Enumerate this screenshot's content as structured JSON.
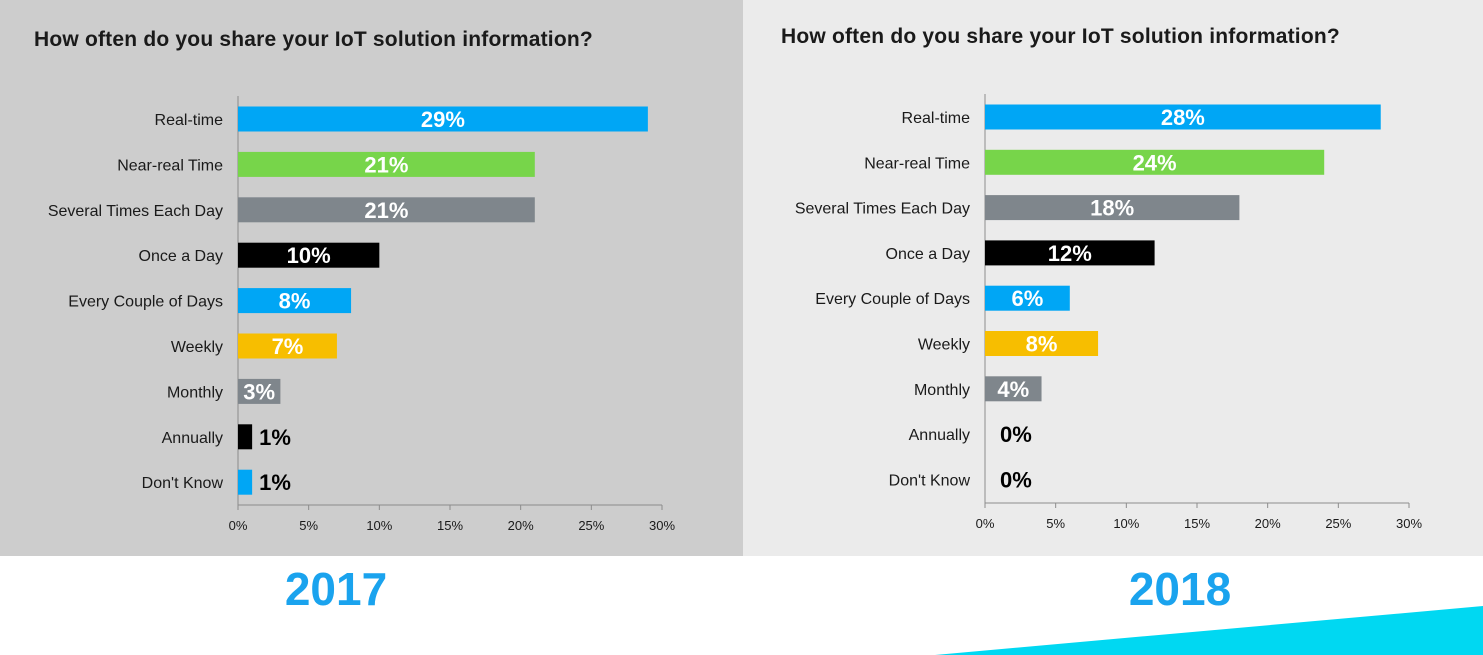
{
  "colors": {
    "blue": "#00a6f5",
    "green": "#77d54a",
    "gray": "#7f868c",
    "black": "#000000",
    "yellow": "#f7be00",
    "year_text": "#1aa3ee",
    "accent_stripe": "#00d8f2"
  },
  "chart_data": [
    {
      "type": "bar",
      "orientation": "horizontal",
      "title": "How often do you share your IoT solution information?",
      "categories": [
        "Real-time",
        "Near-real Time",
        "Several Times Each Day",
        "Once a Day",
        "Every Couple of Days",
        "Weekly",
        "Monthly",
        "Annually",
        "Don't Know"
      ],
      "values": [
        29,
        21,
        21,
        10,
        8,
        7,
        3,
        1,
        1
      ],
      "data_labels": [
        "29%",
        "21%",
        "21%",
        "10%",
        "8%",
        "7%",
        "3%",
        "1%",
        "1%"
      ],
      "bar_colors": [
        "blue",
        "green",
        "gray",
        "black",
        "blue",
        "yellow",
        "gray",
        "black",
        "blue"
      ],
      "xlim": [
        0,
        30
      ],
      "xticks": [
        "0%",
        "5%",
        "10%",
        "15%",
        "20%",
        "25%",
        "30%"
      ],
      "xlabel": "",
      "ylabel": "",
      "grid": false,
      "caption": "2017"
    },
    {
      "type": "bar",
      "orientation": "horizontal",
      "title": "How often do you share your IoT solution information?",
      "categories": [
        "Real-time",
        "Near-real Time",
        "Several Times Each Day",
        "Once a Day",
        "Every Couple of Days",
        "Weekly",
        "Monthly",
        "Annually",
        "Don't Know"
      ],
      "values": [
        28,
        24,
        18,
        12,
        6,
        8,
        4,
        0,
        0
      ],
      "data_labels": [
        "28%",
        "24%",
        "18%",
        "12%",
        "6%",
        "8%",
        "4%",
        "0%",
        "0%"
      ],
      "bar_colors": [
        "blue",
        "green",
        "gray",
        "black",
        "blue",
        "yellow",
        "gray",
        "black",
        "blue"
      ],
      "xlim": [
        0,
        30
      ],
      "xticks": [
        "0%",
        "5%",
        "10%",
        "15%",
        "20%",
        "25%",
        "30%"
      ],
      "xlabel": "",
      "ylabel": "",
      "grid": false,
      "caption": "2018"
    }
  ]
}
